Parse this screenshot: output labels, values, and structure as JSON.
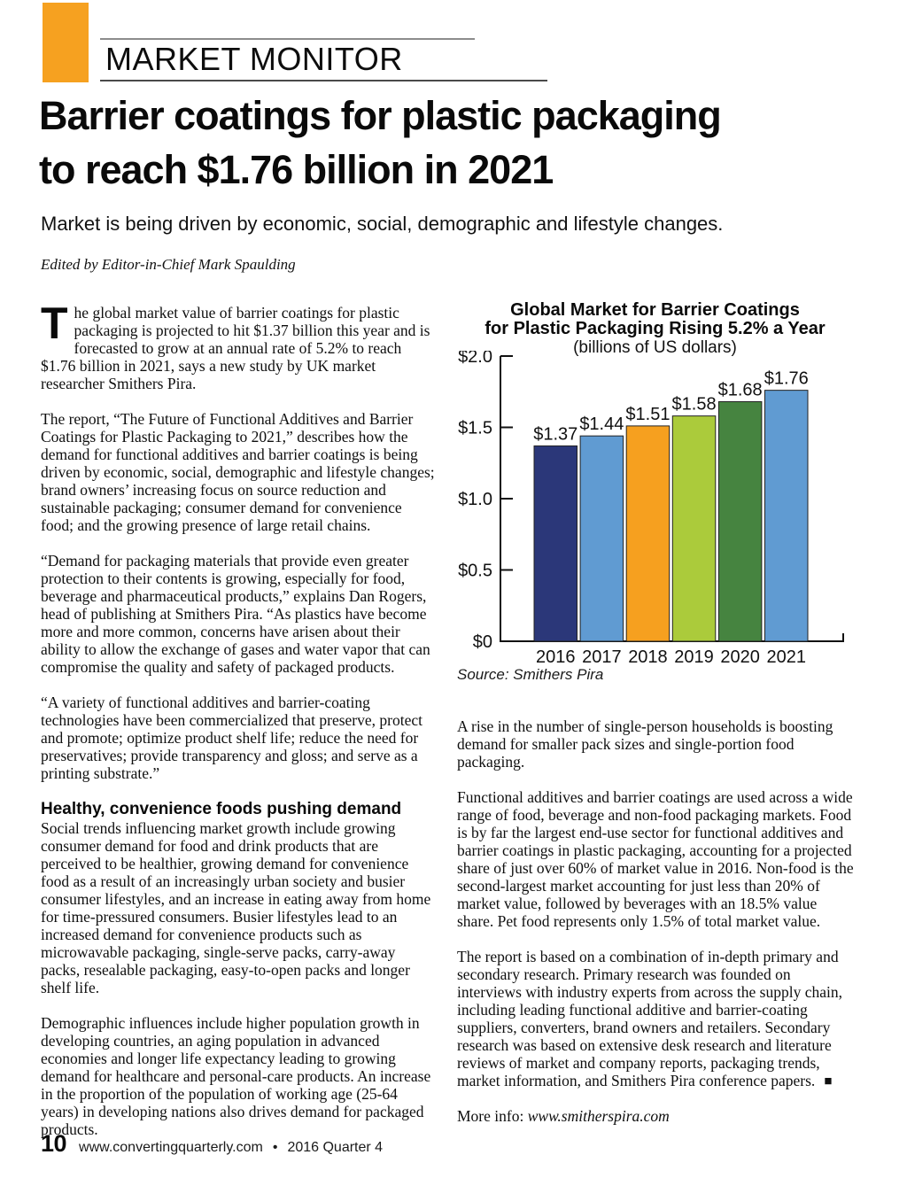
{
  "header": {
    "kicker": "MARKET MONITOR"
  },
  "article": {
    "title_line1": "Barrier coatings for plastic packaging",
    "title_line2": "to reach $1.76 billion in 2021",
    "deck": "Market is being driven by economic, social, demographic and lifestyle changes.",
    "byline": "Edited by Editor-in-Chief Mark Spaulding"
  },
  "left_column": {
    "para1_dropcap": "T",
    "para1_rest": "he global market value of barrier coatings for plastic packaging is projected to hit $1.37 billion this year and is forecasted to grow at an annual rate of 5.2% to reach $1.76 billion in 2021, says a new study by UK market researcher Smithers Pira.",
    "para2": "The report, “The Future of Functional Additives and Barrier Coatings for Plastic Packaging to 2021,” describes how the demand for functional additives and barrier coatings is being driven by economic, social, demographic and lifestyle changes; brand owners’ increasing focus on source reduction and sustainable packaging; consumer demand for convenience food; and the growing presence of large retail chains.",
    "para3": "“Demand for packaging materials that provide even greater protection to their contents is growing, especially for food, beverage and pharmaceutical products,” explains Dan Rogers, head of publishing at Smithers Pira. “As plastics have become more and more common, concerns have arisen about their ability to allow the exchange of gases and water vapor that can compromise the quality and safety of packaged products.",
    "para4": "“A variety of functional additives and barrier-coating technologies have been commercialized that preserve, protect and promote; optimize product shelf life; reduce the need for preservatives; provide transparency and gloss; and serve as a printing substrate.”",
    "subhead": "Healthy, convenience foods pushing demand",
    "para5": "Social trends influencing market growth include growing consumer demand for food and drink products that are perceived to be healthier, growing demand for convenience food as a result of an increasingly urban society and busier consumer lifestyles, and an increase in eating away from home for time-pressured consumers. Busier lifestyles lead to an increased demand for convenience products such as microwavable packaging, single-serve packs, carry-away packs, resealable packaging, easy-to-open packs and longer shelf life.",
    "para6": "Demographic influences include higher population growth in developing countries, an aging population in advanced economies and longer life expectancy leading to growing demand for healthcare and personal-care products. An increase in the proportion of the population of working age (25-64 years) in developing nations also drives demand for packaged products."
  },
  "right_column": {
    "para1": "A rise in the number of single-person households is boosting demand for smaller pack sizes and single-portion food packaging.",
    "para2": "Functional additives and barrier coatings are used across a wide range of food, beverage and non-food packaging markets. Food is by far the largest end-use sector for functional additives and barrier coatings in plastic packaging, accounting for a projected share of just over 60% of market value in 2016. Non-food is the second-largest market accounting for just less than 20% of market value, followed by beverages with an 18.5% value share. Pet food represents only 1.5% of total market value.",
    "para3": "The report is based on a combination of in-depth primary and secondary research. Primary research was founded on interviews with industry experts from across the supply chain, including leading functional additive and barrier-coating suppliers, converters, brand owners and retailers. Secondary research was based on extensive desk research and literature reviews of market and company reports, packaging trends, market information, and Smithers Pira conference papers.",
    "end_mark": "■",
    "more_info_label": "More info: ",
    "more_info_url": "www.smitherspira.com"
  },
  "chart_data": {
    "type": "bar",
    "title": "Global Market for Barrier Coatings",
    "title_line2": "for Plastic Packaging Rising 5.2% a Year",
    "subtitle": "(billions of US dollars)",
    "categories": [
      "2016",
      "2017",
      "2018",
      "2019",
      "2020",
      "2021"
    ],
    "values": [
      1.37,
      1.44,
      1.51,
      1.58,
      1.68,
      1.76
    ],
    "value_labels": [
      "$1.37",
      "$1.44",
      "$1.51",
      "$1.58",
      "$1.68",
      "$1.76"
    ],
    "bar_colors": [
      "#2B3779",
      "#609BD2",
      "#F6A01F",
      "#ABCB3B",
      "#468440",
      "#609BD2"
    ],
    "xlabel": "",
    "ylabel": "",
    "ylim": [
      0,
      2
    ],
    "ytick_labels": [
      "$0",
      "$0.5",
      "$1.0",
      "$1.5",
      "$2.0"
    ],
    "grid": false,
    "legend": "none",
    "source": "Source: Smithers Pira"
  },
  "footer": {
    "page_number": "10",
    "site": "www.convertingquarterly.com",
    "separator": "•",
    "issue": "2016 Quarter 4"
  },
  "colors": {
    "accent_orange": "#F6A120",
    "axis": "#111111",
    "bar_outline": "#222222"
  }
}
